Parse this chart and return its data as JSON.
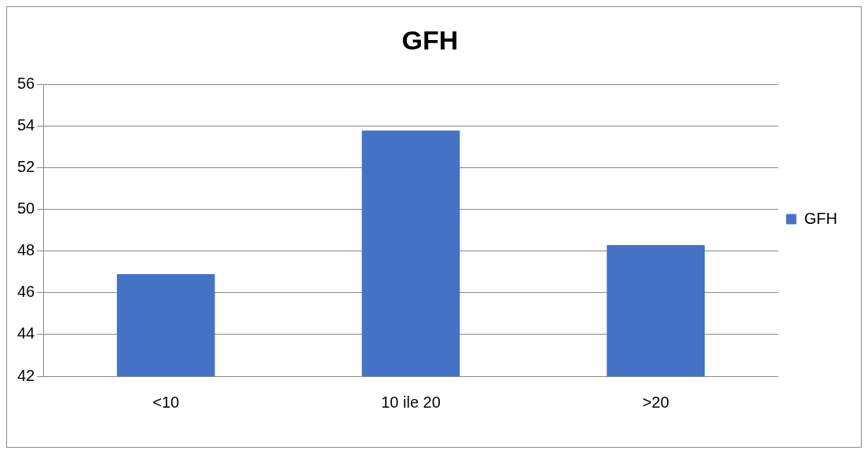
{
  "chart_data": {
    "type": "bar",
    "title": "GFH",
    "categories": [
      "<10",
      "10 ile 20",
      ">20"
    ],
    "series": [
      {
        "name": "GFH",
        "color": "#4472c4",
        "values": [
          46.9,
          53.8,
          48.3
        ]
      }
    ],
    "ylim": [
      42,
      56
    ],
    "yticks": [
      42,
      44,
      46,
      48,
      50,
      52,
      54,
      56
    ],
    "grid": "y",
    "legend": "right"
  }
}
